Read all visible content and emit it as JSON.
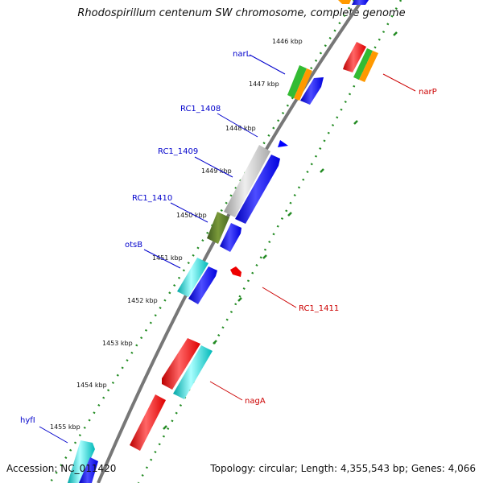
{
  "title": "Rhodospirillum centenum SW chromosome, complete genome",
  "accession": "Accession: NC_011420",
  "topology": "Topology: circular; Length: 4,355,543 bp; Genes: 4,066",
  "ticks": [
    "1446 kbp",
    "1447 kbp",
    "1448 kbp",
    "1449 kbp",
    "1450 kbp",
    "1451 kbp",
    "1452 kbp",
    "1453 kbp",
    "1454 kbp",
    "1455 kbp"
  ],
  "gene_labels": [
    "narL",
    "RC1_1408",
    "RC1_1409",
    "RC1_1410",
    "otsB",
    "hyfI",
    "narP",
    "RC1_1411",
    "nagA"
  ],
  "colors": {
    "backbone": "#777777",
    "label_forward": "#0000cc",
    "label_reverse": "#cc0000",
    "tick_dots": "#228b22",
    "feature_blue": "#0000ff",
    "feature_red": "#ee0000",
    "feature_cyan": "#00cccc",
    "feature_green": "#33bb33",
    "feature_orange": "#ff9900",
    "feature_grey": "#bbbbbb",
    "feature_olive": "#556b2f"
  }
}
